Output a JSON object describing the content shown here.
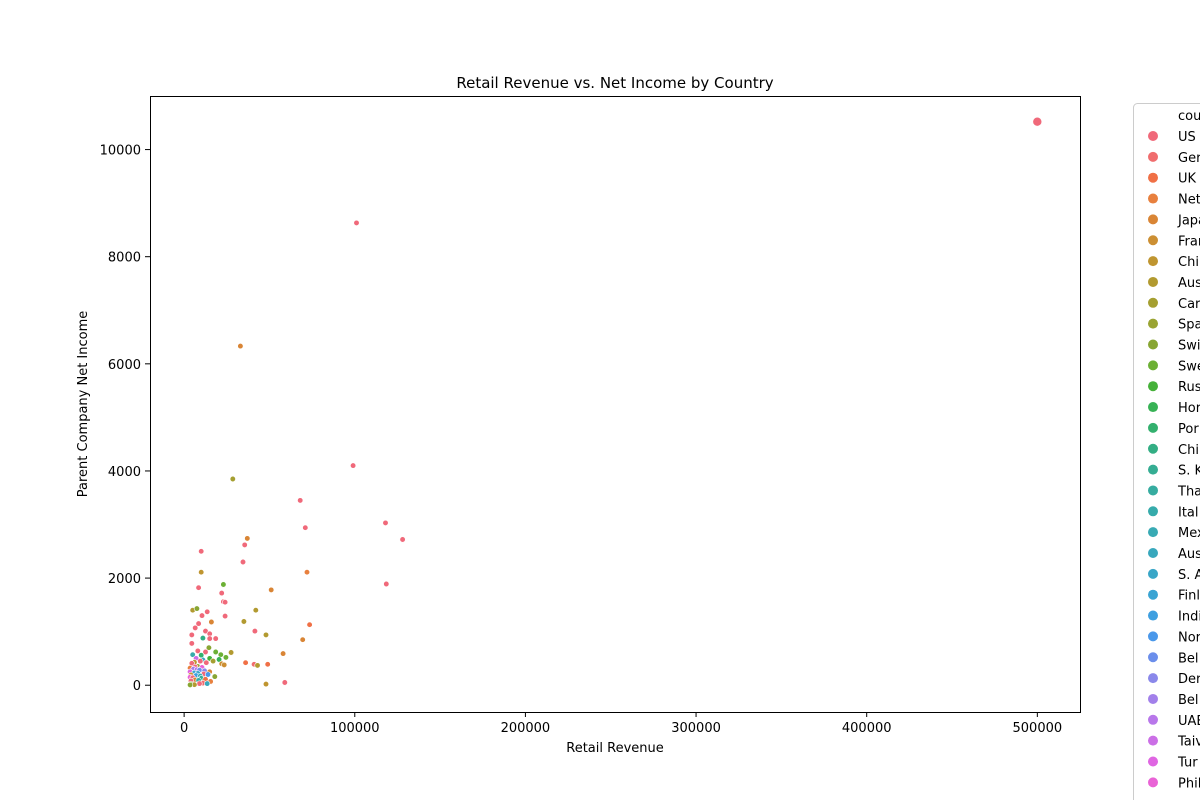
{
  "chart_data": {
    "type": "scatter",
    "title": "Retail Revenue vs. Net Income by Country",
    "xlabel": "Retail Revenue",
    "ylabel": "Parent Company Net Income",
    "xlim": [
      -20000,
      525000
    ],
    "ylim": [
      -500,
      11000
    ],
    "xticks": [
      0,
      100000,
      200000,
      300000,
      400000,
      500000
    ],
    "yticks": [
      0,
      2000,
      4000,
      6000,
      8000,
      10000
    ],
    "grid": false,
    "legend": {
      "placement": "outside-right",
      "title": "cou",
      "entries": [
        {
          "label": "US",
          "color": "#f0697a"
        },
        {
          "label": "Ger",
          "color": "#f06d6e"
        },
        {
          "label": "UK",
          "color": "#f07046"
        },
        {
          "label": "Net",
          "color": "#e8803e"
        },
        {
          "label": "Japa",
          "color": "#d98535"
        },
        {
          "label": "Fran",
          "color": "#cc8f33"
        },
        {
          "label": "Chi",
          "color": "#bf9530"
        },
        {
          "label": "Aus",
          "color": "#b29a30"
        },
        {
          "label": "Car",
          "color": "#a59f31"
        },
        {
          "label": "Spa",
          "color": "#9aa433"
        },
        {
          "label": "Swi",
          "color": "#88a633"
        },
        {
          "label": "Swe",
          "color": "#6cb035"
        },
        {
          "label": "Rus",
          "color": "#45b139"
        },
        {
          "label": "Hor",
          "color": "#37b255"
        },
        {
          "label": "Por",
          "color": "#33b06e"
        },
        {
          "label": "Chi",
          "color": "#33ae84"
        },
        {
          "label": "S. K",
          "color": "#35ad93"
        },
        {
          "label": "Tha",
          "color": "#36aca0"
        },
        {
          "label": "Ital",
          "color": "#36abab"
        },
        {
          "label": "Mex",
          "color": "#38aab4"
        },
        {
          "label": "Aus",
          "color": "#38a8bd"
        },
        {
          "label": "S. A",
          "color": "#39a6c7"
        },
        {
          "label": "Finl",
          "color": "#3aa4d3"
        },
        {
          "label": "Indi",
          "color": "#3e9fe0"
        },
        {
          "label": "Nor",
          "color": "#4a98ea"
        },
        {
          "label": "Bel",
          "color": "#6b8eeb"
        },
        {
          "label": "Der",
          "color": "#8a88ea"
        },
        {
          "label": "Bel",
          "color": "#a280ea"
        },
        {
          "label": "UAE",
          "color": "#b877ea"
        },
        {
          "label": "Taiv",
          "color": "#cb6fe6"
        },
        {
          "label": "Tur",
          "color": "#df66e2"
        },
        {
          "label": "Phil",
          "color": "#e963d6"
        }
      ]
    },
    "points": [
      {
        "x": 500000,
        "y": 10520,
        "color": "#f0697a",
        "size": 9
      },
      {
        "x": 101000,
        "y": 8630,
        "color": "#f0697a"
      },
      {
        "x": 33000,
        "y": 6330,
        "color": "#d98535"
      },
      {
        "x": 28500,
        "y": 3850,
        "color": "#a59f31"
      },
      {
        "x": 99000,
        "y": 4100,
        "color": "#f0697a"
      },
      {
        "x": 68000,
        "y": 3450,
        "color": "#f0697a"
      },
      {
        "x": 118000,
        "y": 3030,
        "color": "#f0697a"
      },
      {
        "x": 71000,
        "y": 2940,
        "color": "#f0697a"
      },
      {
        "x": 128000,
        "y": 2720,
        "color": "#f0697a"
      },
      {
        "x": 37000,
        "y": 2740,
        "color": "#d98535"
      },
      {
        "x": 35500,
        "y": 2620,
        "color": "#f0697a"
      },
      {
        "x": 10000,
        "y": 2500,
        "color": "#f0697a"
      },
      {
        "x": 34500,
        "y": 2300,
        "color": "#f0697a"
      },
      {
        "x": 10000,
        "y": 2110,
        "color": "#bf9530"
      },
      {
        "x": 72000,
        "y": 2110,
        "color": "#e8803e"
      },
      {
        "x": 118500,
        "y": 1890,
        "color": "#f0697a"
      },
      {
        "x": 23000,
        "y": 1880,
        "color": "#6cb035"
      },
      {
        "x": 8500,
        "y": 1820,
        "color": "#f0697a"
      },
      {
        "x": 51000,
        "y": 1780,
        "color": "#d98535"
      },
      {
        "x": 22000,
        "y": 1720,
        "color": "#f0697a"
      },
      {
        "x": 23000,
        "y": 1560,
        "color": "#f0697a"
      },
      {
        "x": 24000,
        "y": 1550,
        "color": "#f0697a"
      },
      {
        "x": 5000,
        "y": 1400,
        "color": "#b29a30"
      },
      {
        "x": 7500,
        "y": 1430,
        "color": "#88a633"
      },
      {
        "x": 42000,
        "y": 1400,
        "color": "#b29a30"
      },
      {
        "x": 13500,
        "y": 1370,
        "color": "#f0697a"
      },
      {
        "x": 10500,
        "y": 1300,
        "color": "#f0697a"
      },
      {
        "x": 24000,
        "y": 1290,
        "color": "#f0697a"
      },
      {
        "x": 35000,
        "y": 1190,
        "color": "#b29a30"
      },
      {
        "x": 16000,
        "y": 1180,
        "color": "#d98535"
      },
      {
        "x": 8500,
        "y": 1150,
        "color": "#f0697a"
      },
      {
        "x": 73500,
        "y": 1130,
        "color": "#f07046"
      },
      {
        "x": 6500,
        "y": 1070,
        "color": "#f0697a"
      },
      {
        "x": 12500,
        "y": 1010,
        "color": "#f0697a"
      },
      {
        "x": 41500,
        "y": 1010,
        "color": "#f0697a"
      },
      {
        "x": 15000,
        "y": 960,
        "color": "#f0697a"
      },
      {
        "x": 4500,
        "y": 940,
        "color": "#f0697a"
      },
      {
        "x": 48000,
        "y": 940,
        "color": "#b29a30"
      },
      {
        "x": 15000,
        "y": 870,
        "color": "#f0697a"
      },
      {
        "x": 11000,
        "y": 880,
        "color": "#33ae84"
      },
      {
        "x": 18500,
        "y": 870,
        "color": "#f0697a"
      },
      {
        "x": 69500,
        "y": 850,
        "color": "#d98535"
      },
      {
        "x": 4500,
        "y": 780,
        "color": "#f0697a"
      },
      {
        "x": 14500,
        "y": 700,
        "color": "#88a633"
      },
      {
        "x": 8000,
        "y": 640,
        "color": "#f0697a"
      },
      {
        "x": 12500,
        "y": 620,
        "color": "#f0697a"
      },
      {
        "x": 18500,
        "y": 620,
        "color": "#6cb035"
      },
      {
        "x": 27500,
        "y": 610,
        "color": "#b29a30"
      },
      {
        "x": 58000,
        "y": 590,
        "color": "#d98535"
      },
      {
        "x": 21500,
        "y": 570,
        "color": "#6cb035"
      },
      {
        "x": 5000,
        "y": 570,
        "color": "#36abab"
      },
      {
        "x": 10000,
        "y": 560,
        "color": "#33b06e"
      },
      {
        "x": 24500,
        "y": 520,
        "color": "#6cb035"
      },
      {
        "x": 15000,
        "y": 500,
        "color": "#45b139"
      },
      {
        "x": 20500,
        "y": 480,
        "color": "#37b255"
      },
      {
        "x": 7000,
        "y": 500,
        "color": "#cb6fe6"
      },
      {
        "x": 11000,
        "y": 470,
        "color": "#38a8bd"
      },
      {
        "x": 9500,
        "y": 450,
        "color": "#f0697a"
      },
      {
        "x": 17000,
        "y": 450,
        "color": "#a59f31"
      },
      {
        "x": 6000,
        "y": 430,
        "color": "#bf9530"
      },
      {
        "x": 13000,
        "y": 420,
        "color": "#f0697a"
      },
      {
        "x": 36000,
        "y": 420,
        "color": "#f07046"
      },
      {
        "x": 4500,
        "y": 410,
        "color": "#f0697a"
      },
      {
        "x": 22000,
        "y": 400,
        "color": "#cc8f33"
      },
      {
        "x": 41000,
        "y": 390,
        "color": "#f06d6e"
      },
      {
        "x": 49000,
        "y": 390,
        "color": "#f07046"
      },
      {
        "x": 23500,
        "y": 380,
        "color": "#cc8f33"
      },
      {
        "x": 43000,
        "y": 370,
        "color": "#b29a30"
      },
      {
        "x": 8000,
        "y": 350,
        "color": "#9aa433"
      },
      {
        "x": 6500,
        "y": 340,
        "color": "#f0697a"
      },
      {
        "x": 10500,
        "y": 330,
        "color": "#e963d6"
      },
      {
        "x": 3500,
        "y": 320,
        "color": "#e8803e"
      },
      {
        "x": 5500,
        "y": 300,
        "color": "#a280ea"
      },
      {
        "x": 7500,
        "y": 290,
        "color": "#b877ea"
      },
      {
        "x": 9000,
        "y": 280,
        "color": "#6b8eeb"
      },
      {
        "x": 12000,
        "y": 270,
        "color": "#8a88ea"
      },
      {
        "x": 15000,
        "y": 250,
        "color": "#d98535"
      },
      {
        "x": 3500,
        "y": 250,
        "color": "#df66e2"
      },
      {
        "x": 6000,
        "y": 230,
        "color": "#3aa4d3"
      },
      {
        "x": 8000,
        "y": 220,
        "color": "#39a6c7"
      },
      {
        "x": 11500,
        "y": 210,
        "color": "#f0697a"
      },
      {
        "x": 14000,
        "y": 200,
        "color": "#4a98ea"
      },
      {
        "x": 4000,
        "y": 190,
        "color": "#cc8f33"
      },
      {
        "x": 7000,
        "y": 180,
        "color": "#3e9fe0"
      },
      {
        "x": 9500,
        "y": 170,
        "color": "#38aab4"
      },
      {
        "x": 18000,
        "y": 160,
        "color": "#88a633"
      },
      {
        "x": 3500,
        "y": 150,
        "color": "#e963d6"
      },
      {
        "x": 5000,
        "y": 140,
        "color": "#f0697a"
      },
      {
        "x": 10000,
        "y": 130,
        "color": "#35ad93"
      },
      {
        "x": 12500,
        "y": 110,
        "color": "#f07046"
      },
      {
        "x": 6500,
        "y": 100,
        "color": "#d98535"
      },
      {
        "x": 8500,
        "y": 90,
        "color": "#36aca0"
      },
      {
        "x": 4000,
        "y": 80,
        "color": "#f0697a"
      },
      {
        "x": 15500,
        "y": 70,
        "color": "#e8803e"
      },
      {
        "x": 59000,
        "y": 50,
        "color": "#f0697a"
      },
      {
        "x": 11000,
        "y": 40,
        "color": "#f06d6e"
      },
      {
        "x": 9000,
        "y": 30,
        "color": "#f0697a"
      },
      {
        "x": 13500,
        "y": 30,
        "color": "#38a8bd"
      },
      {
        "x": 4000,
        "y": 20,
        "color": "#6cb035"
      },
      {
        "x": 48000,
        "y": 20,
        "color": "#bf9530"
      },
      {
        "x": 6000,
        "y": 10,
        "color": "#b29a30"
      },
      {
        "x": 3500,
        "y": 5,
        "color": "#88a633"
      }
    ]
  }
}
